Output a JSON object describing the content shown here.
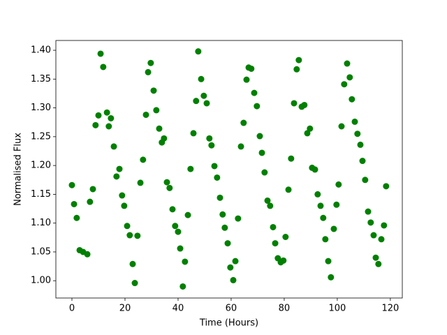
{
  "chart_data": {
    "type": "scatter",
    "xlabel": "Time (Hours)",
    "ylabel": "Normalised Flux",
    "color": "#008000",
    "x": [
      0,
      0.8,
      1.8,
      2.9,
      4.2,
      5.8,
      6.8,
      7.9,
      8.9,
      10,
      10.8,
      11.8,
      13.2,
      13.9,
      14.7,
      15.8,
      16.8,
      17.9,
      18.9,
      19.7,
      20.8,
      21.8,
      22.9,
      23.7,
      24.7,
      25.8,
      26.8,
      27.9,
      28.7,
      29.7,
      30.8,
      31.8,
      32.9,
      33.9,
      34.7,
      35.8,
      36.8,
      37.9,
      38.9,
      40,
      40.8,
      41.8,
      42.6,
      43.7,
      44.7,
      45.8,
      46.8,
      47.6,
      48.7,
      49.7,
      50.8,
      51.8,
      52.6,
      53.7,
      54.7,
      55.8,
      56.8,
      57.6,
      58.7,
      59.7,
      60.8,
      61.6,
      62.6,
      63.7,
      64.7,
      65.8,
      66.6,
      67.6,
      68.7,
      69.7,
      70.8,
      71.6,
      72.6,
      73.7,
      74.7,
      75.8,
      76.6,
      77.6,
      78.7,
      79.7,
      80.5,
      81.6,
      82.6,
      83.7,
      84.7,
      85.5,
      86.6,
      87.6,
      88.7,
      89.7,
      90.5,
      91.6,
      92.6,
      93.7,
      94.7,
      95.5,
      96.6,
      97.6,
      98.7,
      99.7,
      100.5,
      101.6,
      102.6,
      103.7,
      104.7,
      105.5,
      106.6,
      107.6,
      108.7,
      109.5,
      110.5,
      111.6,
      112.6,
      113.7,
      114.5,
      115.5,
      116.6,
      117.6,
      118.4
    ],
    "values": [
      1.166,
      1.133,
      1.109,
      1.053,
      1.05,
      1.046,
      1.137,
      1.159,
      1.27,
      1.287,
      1.394,
      1.371,
      1.292,
      1.268,
      1.282,
      1.233,
      1.181,
      1.194,
      1.148,
      1.13,
      1.095,
      1.079,
      1.029,
      0.996,
      1.078,
      1.17,
      1.21,
      1.288,
      1.362,
      1.378,
      1.33,
      1.296,
      1.264,
      1.24,
      1.247,
      1.171,
      1.161,
      1.124,
      1.095,
      1.085,
      1.056,
      0.99,
      1.033,
      1.114,
      1.194,
      1.256,
      1.312,
      1.398,
      1.35,
      1.321,
      1.308,
      1.247,
      1.235,
      1.199,
      1.179,
      1.144,
      1.115,
      1.092,
      1.065,
      1.023,
      1.001,
      1.034,
      1.108,
      1.233,
      1.274,
      1.349,
      1.37,
      1.368,
      1.326,
      1.303,
      1.251,
      1.222,
      1.188,
      1.139,
      1.13,
      1.093,
      1.065,
      1.039,
      1.032,
      1.035,
      1.076,
      1.158,
      1.212,
      1.308,
      1.367,
      1.383,
      1.302,
      1.305,
      1.256,
      1.264,
      1.196,
      1.193,
      1.15,
      1.13,
      1.109,
      1.072,
      1.034,
      1.006,
      1.09,
      1.132,
      1.167,
      1.268,
      1.341,
      1.377,
      1.353,
      1.315,
      1.276,
      1.255,
      1.236,
      1.208,
      1.175,
      1.12,
      1.101,
      1.079,
      1.04,
      1.029,
      1.072,
      1.096,
      1.164
    ],
    "xlim": [
      -6.05,
      124.5
    ],
    "ylim": [
      0.97,
      1.417
    ],
    "xticks": [
      0,
      20,
      40,
      60,
      80,
      100,
      120
    ],
    "yticks": [
      {
        "value": 1,
        "label": "1.00"
      },
      1.05,
      {
        "value": 1.1,
        "label": "1.10"
      },
      1.15,
      {
        "value": 1.2,
        "label": "1.20"
      },
      1.25,
      {
        "value": 1.3,
        "label": "1.30"
      },
      1.35,
      {
        "value": 1.4,
        "label": "1.40"
      }
    ],
    "grid": false
  }
}
